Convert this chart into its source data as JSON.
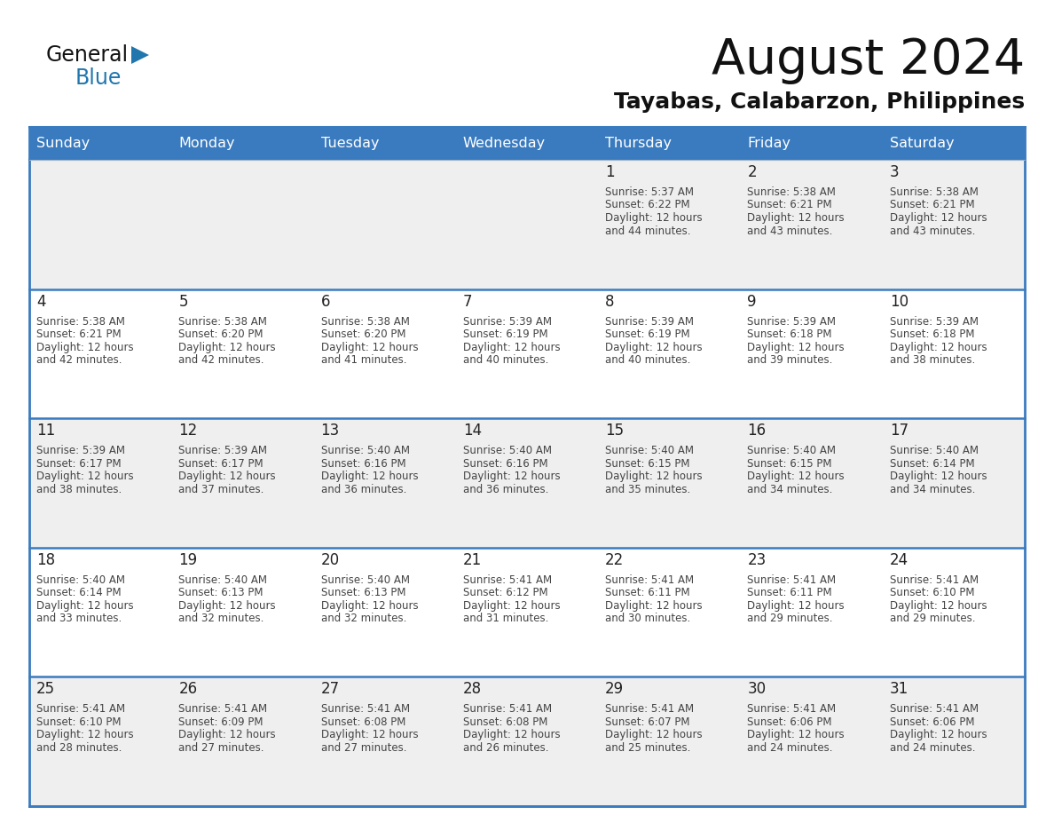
{
  "title": "August 2024",
  "subtitle": "Tayabas, Calabarzon, Philippines",
  "days_of_week": [
    "Sunday",
    "Monday",
    "Tuesday",
    "Wednesday",
    "Thursday",
    "Friday",
    "Saturday"
  ],
  "header_bg": "#3a7bbf",
  "header_text": "#ffffff",
  "row_bg_light": "#efefef",
  "row_bg_white": "#ffffff",
  "cell_border_color": "#3a7bbf",
  "row_border_color": "#3a7bbf",
  "day_num_color": "#222222",
  "info_text_color": "#444444",
  "title_color": "#111111",
  "subtitle_color": "#111111",
  "logo_general_color": "#111111",
  "logo_blue_color": "#2176ae",
  "logo_triangle_color": "#2176ae",
  "weeks": [
    [
      {
        "day": "",
        "sunrise": "",
        "sunset": "",
        "daylight_hrs": "",
        "daylight_min": ""
      },
      {
        "day": "",
        "sunrise": "",
        "sunset": "",
        "daylight_hrs": "",
        "daylight_min": ""
      },
      {
        "day": "",
        "sunrise": "",
        "sunset": "",
        "daylight_hrs": "",
        "daylight_min": ""
      },
      {
        "day": "",
        "sunrise": "",
        "sunset": "",
        "daylight_hrs": "",
        "daylight_min": ""
      },
      {
        "day": "1",
        "sunrise": "5:37 AM",
        "sunset": "6:22 PM",
        "daylight_hrs": "12 hours",
        "daylight_min": "and 44 minutes."
      },
      {
        "day": "2",
        "sunrise": "5:38 AM",
        "sunset": "6:21 PM",
        "daylight_hrs": "12 hours",
        "daylight_min": "and 43 minutes."
      },
      {
        "day": "3",
        "sunrise": "5:38 AM",
        "sunset": "6:21 PM",
        "daylight_hrs": "12 hours",
        "daylight_min": "and 43 minutes."
      }
    ],
    [
      {
        "day": "4",
        "sunrise": "5:38 AM",
        "sunset": "6:21 PM",
        "daylight_hrs": "12 hours",
        "daylight_min": "and 42 minutes."
      },
      {
        "day": "5",
        "sunrise": "5:38 AM",
        "sunset": "6:20 PM",
        "daylight_hrs": "12 hours",
        "daylight_min": "and 42 minutes."
      },
      {
        "day": "6",
        "sunrise": "5:38 AM",
        "sunset": "6:20 PM",
        "daylight_hrs": "12 hours",
        "daylight_min": "and 41 minutes."
      },
      {
        "day": "7",
        "sunrise": "5:39 AM",
        "sunset": "6:19 PM",
        "daylight_hrs": "12 hours",
        "daylight_min": "and 40 minutes."
      },
      {
        "day": "8",
        "sunrise": "5:39 AM",
        "sunset": "6:19 PM",
        "daylight_hrs": "12 hours",
        "daylight_min": "and 40 minutes."
      },
      {
        "day": "9",
        "sunrise": "5:39 AM",
        "sunset": "6:18 PM",
        "daylight_hrs": "12 hours",
        "daylight_min": "and 39 minutes."
      },
      {
        "day": "10",
        "sunrise": "5:39 AM",
        "sunset": "6:18 PM",
        "daylight_hrs": "12 hours",
        "daylight_min": "and 38 minutes."
      }
    ],
    [
      {
        "day": "11",
        "sunrise": "5:39 AM",
        "sunset": "6:17 PM",
        "daylight_hrs": "12 hours",
        "daylight_min": "and 38 minutes."
      },
      {
        "day": "12",
        "sunrise": "5:39 AM",
        "sunset": "6:17 PM",
        "daylight_hrs": "12 hours",
        "daylight_min": "and 37 minutes."
      },
      {
        "day": "13",
        "sunrise": "5:40 AM",
        "sunset": "6:16 PM",
        "daylight_hrs": "12 hours",
        "daylight_min": "and 36 minutes."
      },
      {
        "day": "14",
        "sunrise": "5:40 AM",
        "sunset": "6:16 PM",
        "daylight_hrs": "12 hours",
        "daylight_min": "and 36 minutes."
      },
      {
        "day": "15",
        "sunrise": "5:40 AM",
        "sunset": "6:15 PM",
        "daylight_hrs": "12 hours",
        "daylight_min": "and 35 minutes."
      },
      {
        "day": "16",
        "sunrise": "5:40 AM",
        "sunset": "6:15 PM",
        "daylight_hrs": "12 hours",
        "daylight_min": "and 34 minutes."
      },
      {
        "day": "17",
        "sunrise": "5:40 AM",
        "sunset": "6:14 PM",
        "daylight_hrs": "12 hours",
        "daylight_min": "and 34 minutes."
      }
    ],
    [
      {
        "day": "18",
        "sunrise": "5:40 AM",
        "sunset": "6:14 PM",
        "daylight_hrs": "12 hours",
        "daylight_min": "and 33 minutes."
      },
      {
        "day": "19",
        "sunrise": "5:40 AM",
        "sunset": "6:13 PM",
        "daylight_hrs": "12 hours",
        "daylight_min": "and 32 minutes."
      },
      {
        "day": "20",
        "sunrise": "5:40 AM",
        "sunset": "6:13 PM",
        "daylight_hrs": "12 hours",
        "daylight_min": "and 32 minutes."
      },
      {
        "day": "21",
        "sunrise": "5:41 AM",
        "sunset": "6:12 PM",
        "daylight_hrs": "12 hours",
        "daylight_min": "and 31 minutes."
      },
      {
        "day": "22",
        "sunrise": "5:41 AM",
        "sunset": "6:11 PM",
        "daylight_hrs": "12 hours",
        "daylight_min": "and 30 minutes."
      },
      {
        "day": "23",
        "sunrise": "5:41 AM",
        "sunset": "6:11 PM",
        "daylight_hrs": "12 hours",
        "daylight_min": "and 29 minutes."
      },
      {
        "day": "24",
        "sunrise": "5:41 AM",
        "sunset": "6:10 PM",
        "daylight_hrs": "12 hours",
        "daylight_min": "and 29 minutes."
      }
    ],
    [
      {
        "day": "25",
        "sunrise": "5:41 AM",
        "sunset": "6:10 PM",
        "daylight_hrs": "12 hours",
        "daylight_min": "and 28 minutes."
      },
      {
        "day": "26",
        "sunrise": "5:41 AM",
        "sunset": "6:09 PM",
        "daylight_hrs": "12 hours",
        "daylight_min": "and 27 minutes."
      },
      {
        "day": "27",
        "sunrise": "5:41 AM",
        "sunset": "6:08 PM",
        "daylight_hrs": "12 hours",
        "daylight_min": "and 27 minutes."
      },
      {
        "day": "28",
        "sunrise": "5:41 AM",
        "sunset": "6:08 PM",
        "daylight_hrs": "12 hours",
        "daylight_min": "and 26 minutes."
      },
      {
        "day": "29",
        "sunrise": "5:41 AM",
        "sunset": "6:07 PM",
        "daylight_hrs": "12 hours",
        "daylight_min": "and 25 minutes."
      },
      {
        "day": "30",
        "sunrise": "5:41 AM",
        "sunset": "6:06 PM",
        "daylight_hrs": "12 hours",
        "daylight_min": "and 24 minutes."
      },
      {
        "day": "31",
        "sunrise": "5:41 AM",
        "sunset": "6:06 PM",
        "daylight_hrs": "12 hours",
        "daylight_min": "and 24 minutes."
      }
    ]
  ]
}
